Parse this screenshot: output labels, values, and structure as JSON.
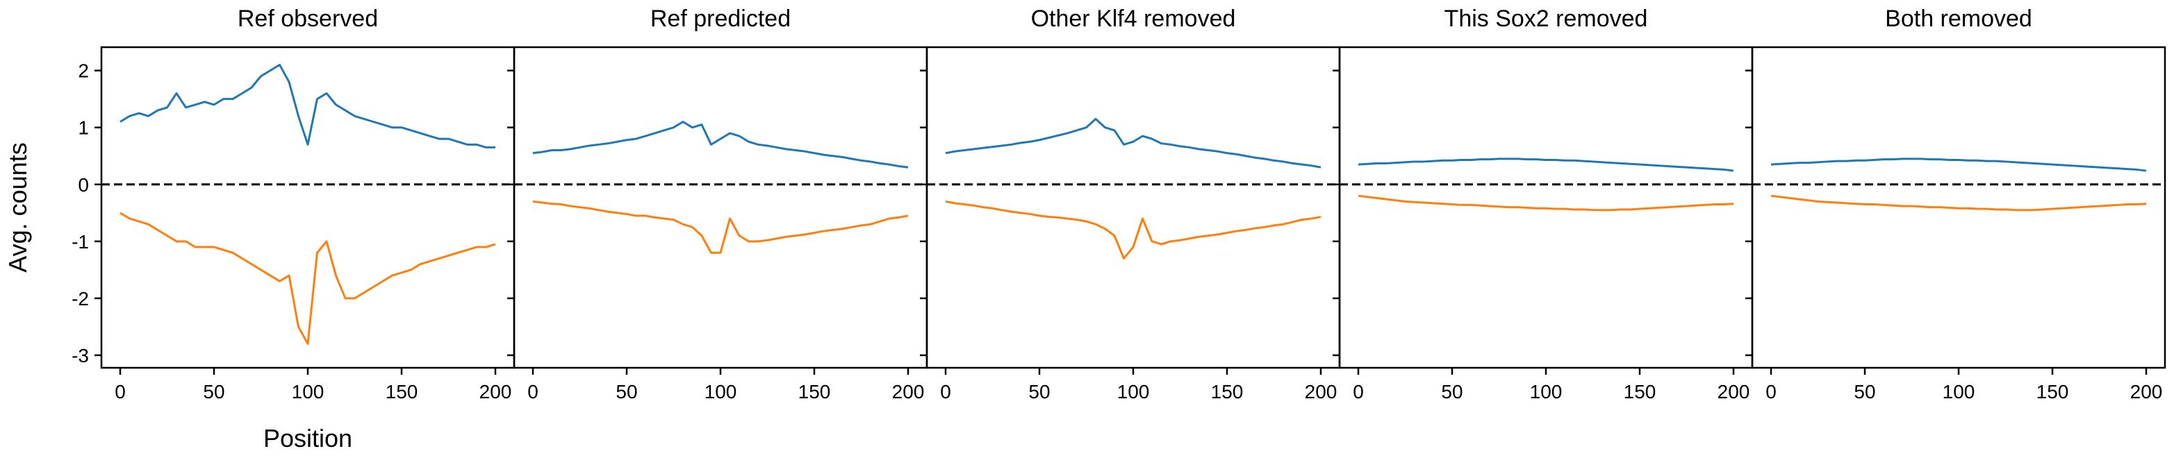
{
  "chart_data": [
    {
      "type": "line",
      "title": "Ref observed",
      "xlabel": "Position",
      "ylabel": "Avg. counts",
      "x": [
        0,
        5,
        10,
        15,
        20,
        25,
        30,
        35,
        40,
        45,
        50,
        55,
        60,
        65,
        70,
        75,
        80,
        85,
        90,
        95,
        100,
        105,
        110,
        115,
        120,
        125,
        130,
        135,
        140,
        145,
        150,
        155,
        160,
        165,
        170,
        175,
        180,
        185,
        190,
        195,
        200
      ],
      "series": [
        {
          "color": "#1f77b4",
          "values": [
            1.1,
            1.2,
            1.25,
            1.2,
            1.3,
            1.35,
            1.6,
            1.35,
            1.4,
            1.45,
            1.4,
            1.5,
            1.5,
            1.6,
            1.7,
            1.9,
            2.0,
            2.1,
            1.8,
            1.2,
            0.7,
            1.5,
            1.6,
            1.4,
            1.3,
            1.2,
            1.15,
            1.1,
            1.05,
            1.0,
            1.0,
            0.95,
            0.9,
            0.85,
            0.8,
            0.8,
            0.75,
            0.7,
            0.7,
            0.65,
            0.65
          ]
        },
        {
          "color": "#ff7f0e",
          "values": [
            -0.5,
            -0.6,
            -0.65,
            -0.7,
            -0.8,
            -0.9,
            -1.0,
            -1.0,
            -1.1,
            -1.1,
            -1.1,
            -1.15,
            -1.2,
            -1.3,
            -1.4,
            -1.5,
            -1.6,
            -1.7,
            -1.6,
            -2.5,
            -2.8,
            -1.2,
            -1.0,
            -1.6,
            -2.0,
            -2.0,
            -1.9,
            -1.8,
            -1.7,
            -1.6,
            -1.55,
            -1.5,
            -1.4,
            -1.35,
            -1.3,
            -1.25,
            -1.2,
            -1.15,
            -1.1,
            -1.1,
            -1.05
          ]
        }
      ],
      "hline": 0,
      "xlim": [
        -10,
        210
      ],
      "ylim": [
        -3.22,
        2.41
      ],
      "xticks": [
        0,
        50,
        100,
        150,
        200
      ],
      "yticks": [
        -3,
        -2,
        -1,
        0,
        1,
        2
      ],
      "show_ytick_labels": true
    },
    {
      "type": "line",
      "title": "Ref predicted",
      "x": [
        0,
        5,
        10,
        15,
        20,
        25,
        30,
        35,
        40,
        45,
        50,
        55,
        60,
        65,
        70,
        75,
        80,
        85,
        90,
        95,
        100,
        105,
        110,
        115,
        120,
        125,
        130,
        135,
        140,
        145,
        150,
        155,
        160,
        165,
        170,
        175,
        180,
        185,
        190,
        195,
        200
      ],
      "series": [
        {
          "color": "#1f77b4",
          "values": [
            0.55,
            0.57,
            0.6,
            0.6,
            0.62,
            0.65,
            0.68,
            0.7,
            0.72,
            0.75,
            0.78,
            0.8,
            0.85,
            0.9,
            0.95,
            1.0,
            1.1,
            1.0,
            1.05,
            0.7,
            0.8,
            0.9,
            0.85,
            0.75,
            0.7,
            0.68,
            0.65,
            0.62,
            0.6,
            0.58,
            0.55,
            0.52,
            0.5,
            0.48,
            0.45,
            0.42,
            0.4,
            0.37,
            0.35,
            0.32,
            0.3
          ]
        },
        {
          "color": "#ff7f0e",
          "values": [
            -0.3,
            -0.32,
            -0.34,
            -0.35,
            -0.38,
            -0.4,
            -0.42,
            -0.45,
            -0.48,
            -0.5,
            -0.52,
            -0.55,
            -0.55,
            -0.58,
            -0.6,
            -0.62,
            -0.7,
            -0.75,
            -0.9,
            -1.2,
            -1.2,
            -0.6,
            -0.9,
            -1.0,
            -1.0,
            -0.98,
            -0.95,
            -0.92,
            -0.9,
            -0.88,
            -0.85,
            -0.82,
            -0.8,
            -0.78,
            -0.75,
            -0.72,
            -0.7,
            -0.65,
            -0.6,
            -0.58,
            -0.55
          ]
        }
      ],
      "hline": 0,
      "xlim": [
        -10,
        210
      ],
      "ylim": [
        -3.22,
        2.41
      ],
      "xticks": [
        0,
        50,
        100,
        150,
        200
      ],
      "yticks": [
        -3,
        -2,
        -1,
        0,
        1,
        2
      ],
      "show_ytick_labels": false
    },
    {
      "type": "line",
      "title": "Other Klf4 removed",
      "x": [
        0,
        5,
        10,
        15,
        20,
        25,
        30,
        35,
        40,
        45,
        50,
        55,
        60,
        65,
        70,
        75,
        80,
        85,
        90,
        95,
        100,
        105,
        110,
        115,
        120,
        125,
        130,
        135,
        140,
        145,
        150,
        155,
        160,
        165,
        170,
        175,
        180,
        185,
        190,
        195,
        200
      ],
      "series": [
        {
          "color": "#1f77b4",
          "values": [
            0.55,
            0.58,
            0.6,
            0.62,
            0.64,
            0.66,
            0.68,
            0.7,
            0.73,
            0.75,
            0.78,
            0.82,
            0.86,
            0.9,
            0.95,
            1.0,
            1.15,
            1.0,
            0.95,
            0.7,
            0.75,
            0.85,
            0.8,
            0.72,
            0.7,
            0.67,
            0.65,
            0.62,
            0.6,
            0.58,
            0.55,
            0.53,
            0.5,
            0.47,
            0.45,
            0.42,
            0.4,
            0.37,
            0.35,
            0.33,
            0.3
          ]
        },
        {
          "color": "#ff7f0e",
          "values": [
            -0.3,
            -0.33,
            -0.35,
            -0.37,
            -0.4,
            -0.42,
            -0.45,
            -0.48,
            -0.5,
            -0.52,
            -0.55,
            -0.57,
            -0.58,
            -0.6,
            -0.62,
            -0.65,
            -0.7,
            -0.78,
            -0.9,
            -1.3,
            -1.1,
            -0.6,
            -1.0,
            -1.05,
            -1.0,
            -0.98,
            -0.95,
            -0.92,
            -0.9,
            -0.88,
            -0.85,
            -0.82,
            -0.8,
            -0.77,
            -0.75,
            -0.72,
            -0.7,
            -0.66,
            -0.62,
            -0.6,
            -0.57
          ]
        }
      ],
      "hline": 0,
      "xlim": [
        -10,
        210
      ],
      "ylim": [
        -3.22,
        2.41
      ],
      "xticks": [
        0,
        50,
        100,
        150,
        200
      ],
      "yticks": [
        -3,
        -2,
        -1,
        0,
        1,
        2
      ],
      "show_ytick_labels": false
    },
    {
      "type": "line",
      "title": "This Sox2 removed",
      "x": [
        0,
        5,
        10,
        15,
        20,
        25,
        30,
        35,
        40,
        45,
        50,
        55,
        60,
        65,
        70,
        75,
        80,
        85,
        90,
        95,
        100,
        105,
        110,
        115,
        120,
        125,
        130,
        135,
        140,
        145,
        150,
        155,
        160,
        165,
        170,
        175,
        180,
        185,
        190,
        195,
        200
      ],
      "series": [
        {
          "color": "#1f77b4",
          "values": [
            0.35,
            0.36,
            0.37,
            0.37,
            0.38,
            0.39,
            0.4,
            0.4,
            0.41,
            0.42,
            0.42,
            0.43,
            0.43,
            0.44,
            0.44,
            0.45,
            0.45,
            0.45,
            0.44,
            0.44,
            0.43,
            0.43,
            0.42,
            0.42,
            0.41,
            0.4,
            0.39,
            0.38,
            0.37,
            0.36,
            0.35,
            0.34,
            0.33,
            0.32,
            0.31,
            0.3,
            0.29,
            0.28,
            0.27,
            0.26,
            0.24
          ]
        },
        {
          "color": "#ff7f0e",
          "values": [
            -0.2,
            -0.22,
            -0.24,
            -0.26,
            -0.28,
            -0.3,
            -0.31,
            -0.32,
            -0.33,
            -0.34,
            -0.35,
            -0.36,
            -0.36,
            -0.37,
            -0.38,
            -0.39,
            -0.4,
            -0.4,
            -0.41,
            -0.42,
            -0.42,
            -0.43,
            -0.43,
            -0.44,
            -0.44,
            -0.45,
            -0.45,
            -0.45,
            -0.44,
            -0.44,
            -0.43,
            -0.42,
            -0.41,
            -0.4,
            -0.39,
            -0.38,
            -0.37,
            -0.36,
            -0.35,
            -0.35,
            -0.34
          ]
        }
      ],
      "hline": 0,
      "xlim": [
        -10,
        210
      ],
      "ylim": [
        -3.22,
        2.41
      ],
      "xticks": [
        0,
        50,
        100,
        150,
        200
      ],
      "yticks": [
        -3,
        -2,
        -1,
        0,
        1,
        2
      ],
      "show_ytick_labels": false
    },
    {
      "type": "line",
      "title": "Both removed",
      "x": [
        0,
        5,
        10,
        15,
        20,
        25,
        30,
        35,
        40,
        45,
        50,
        55,
        60,
        65,
        70,
        75,
        80,
        85,
        90,
        95,
        100,
        105,
        110,
        115,
        120,
        125,
        130,
        135,
        140,
        145,
        150,
        155,
        160,
        165,
        170,
        175,
        180,
        185,
        190,
        195,
        200
      ],
      "series": [
        {
          "color": "#1f77b4",
          "values": [
            0.35,
            0.36,
            0.37,
            0.38,
            0.38,
            0.39,
            0.4,
            0.41,
            0.41,
            0.42,
            0.42,
            0.43,
            0.44,
            0.44,
            0.45,
            0.45,
            0.45,
            0.44,
            0.44,
            0.43,
            0.43,
            0.42,
            0.42,
            0.41,
            0.41,
            0.4,
            0.39,
            0.38,
            0.37,
            0.36,
            0.35,
            0.34,
            0.33,
            0.32,
            0.31,
            0.3,
            0.29,
            0.28,
            0.27,
            0.26,
            0.24
          ]
        },
        {
          "color": "#ff7f0e",
          "values": [
            -0.2,
            -0.22,
            -0.24,
            -0.26,
            -0.28,
            -0.3,
            -0.31,
            -0.32,
            -0.33,
            -0.34,
            -0.35,
            -0.35,
            -0.36,
            -0.37,
            -0.38,
            -0.38,
            -0.39,
            -0.4,
            -0.4,
            -0.41,
            -0.42,
            -0.42,
            -0.43,
            -0.43,
            -0.44,
            -0.44,
            -0.45,
            -0.45,
            -0.45,
            -0.44,
            -0.43,
            -0.42,
            -0.41,
            -0.4,
            -0.39,
            -0.38,
            -0.37,
            -0.36,
            -0.35,
            -0.35,
            -0.34
          ]
        }
      ],
      "hline": 0,
      "xlim": [
        -10,
        210
      ],
      "ylim": [
        -3.22,
        2.41
      ],
      "xticks": [
        0,
        50,
        100,
        150,
        200
      ],
      "yticks": [
        -3,
        -2,
        -1,
        0,
        1,
        2
      ],
      "show_ytick_labels": false
    }
  ]
}
